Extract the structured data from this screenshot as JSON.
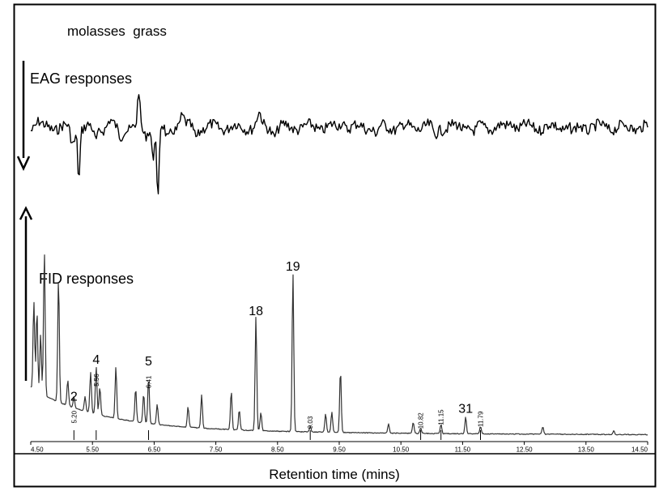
{
  "chart_data": {
    "type": "line",
    "title": "molasses  grass",
    "xlabel": "Retention time (mins)",
    "xlim": [
      4.5,
      14.5
    ],
    "x_ticks": [
      "4.50",
      "5.50",
      "6.50",
      "7.50",
      "8.50",
      "9.50",
      "10.50",
      "11.50",
      "12.50",
      "13.50",
      "14.50"
    ],
    "grid": false,
    "eag": {
      "label": "EAG responses",
      "baseline": 0,
      "peaks": [
        {
          "x": 4.62,
          "y": -0.6
        },
        {
          "x": 5.18,
          "y": 2.6
        },
        {
          "x": 5.28,
          "y": 7.5
        },
        {
          "x": 5.55,
          "y": 2.0
        },
        {
          "x": 5.78,
          "y": -1.0
        },
        {
          "x": 5.95,
          "y": 1.6
        },
        {
          "x": 6.25,
          "y": -5.2
        },
        {
          "x": 6.35,
          "y": 1.4
        },
        {
          "x": 6.48,
          "y": 4.5
        },
        {
          "x": 6.56,
          "y": 11.5
        },
        {
          "x": 6.72,
          "y": 2.0
        },
        {
          "x": 6.95,
          "y": -1.6
        },
        {
          "x": 7.18,
          "y": 1.2
        },
        {
          "x": 8.2,
          "y": -1.8
        },
        {
          "x": 8.45,
          "y": 1.0
        },
        {
          "x": 9.55,
          "y": -0.9
        },
        {
          "x": 10.1,
          "y": 0.9
        },
        {
          "x": 11.05,
          "y": 1.2
        },
        {
          "x": 11.7,
          "y": 0.8
        },
        {
          "x": 12.3,
          "y": -0.8
        },
        {
          "x": 13.3,
          "y": 0.9
        }
      ]
    },
    "fid": {
      "label": "FID responses",
      "baseline": 0,
      "peaks": [
        {
          "x": 4.55,
          "y": 48,
          "id": ""
        },
        {
          "x": 4.6,
          "y": 44,
          "id": ""
        },
        {
          "x": 4.66,
          "y": 32,
          "id": ""
        },
        {
          "x": 4.72,
          "y": 78,
          "id": ""
        },
        {
          "x": 4.95,
          "y": 67,
          "id": ""
        },
        {
          "x": 5.1,
          "y": 14,
          "id": ""
        },
        {
          "x": 5.2,
          "y": 6,
          "id": "2",
          "rt": "5.20"
        },
        {
          "x": 5.38,
          "y": 8,
          "id": ""
        },
        {
          "x": 5.47,
          "y": 22,
          "id": ""
        },
        {
          "x": 5.56,
          "y": 26,
          "id": "4",
          "rt": "5.56"
        },
        {
          "x": 5.62,
          "y": 15,
          "id": ""
        },
        {
          "x": 5.88,
          "y": 28,
          "id": ""
        },
        {
          "x": 6.2,
          "y": 18,
          "id": ""
        },
        {
          "x": 6.33,
          "y": 16,
          "id": ""
        },
        {
          "x": 6.41,
          "y": 25,
          "id": "5",
          "rt": "6.41"
        },
        {
          "x": 6.55,
          "y": 11,
          "id": ""
        },
        {
          "x": 7.05,
          "y": 11,
          "id": ""
        },
        {
          "x": 7.27,
          "y": 18,
          "id": ""
        },
        {
          "x": 7.75,
          "y": 21,
          "id": ""
        },
        {
          "x": 7.88,
          "y": 11,
          "id": ""
        },
        {
          "x": 8.15,
          "y": 62,
          "id": "18"
        },
        {
          "x": 8.23,
          "y": 10,
          "id": ""
        },
        {
          "x": 8.75,
          "y": 86,
          "id": "19"
        },
        {
          "x": 9.03,
          "y": 3,
          "id": "",
          "rt": "9.03"
        },
        {
          "x": 9.28,
          "y": 10,
          "id": ""
        },
        {
          "x": 9.38,
          "y": 11,
          "id": ""
        },
        {
          "x": 9.52,
          "y": 34,
          "id": ""
        },
        {
          "x": 10.3,
          "y": 5,
          "id": ""
        },
        {
          "x": 10.7,
          "y": 6,
          "id": ""
        },
        {
          "x": 10.82,
          "y": 3,
          "id": "",
          "rt": "10.82"
        },
        {
          "x": 11.15,
          "y": 5,
          "id": "",
          "rt": "11.15"
        },
        {
          "x": 11.55,
          "y": 9,
          "id": "31"
        },
        {
          "x": 11.79,
          "y": 4,
          "id": "",
          "rt": "11.79"
        },
        {
          "x": 12.8,
          "y": 4,
          "id": ""
        },
        {
          "x": 13.95,
          "y": 2,
          "id": ""
        }
      ]
    }
  }
}
